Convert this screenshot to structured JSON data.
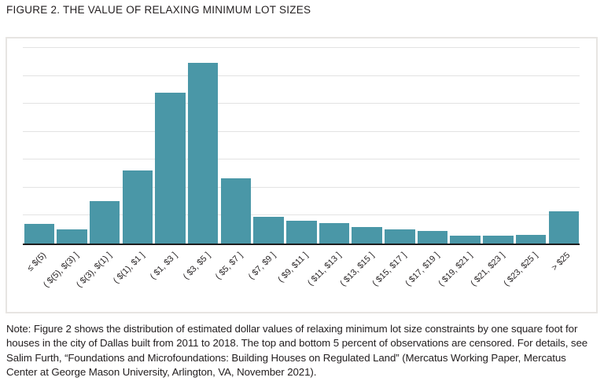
{
  "figure": {
    "title": "FIGURE 2. THE VALUE OF RELAXING MINIMUM LOT SIZES",
    "note": "Note: Figure 2 shows the distribution of estimated dollar values of relaxing minimum lot size constraints by one square foot for houses in the city of Dallas built from 2011 to 2018. The top and bottom 5 percent of observations are censored. For details, see Salim Furth, “Foundations and Microfoundations: Building Houses on Regulated Land” (Mercatus Working Paper, Mercatus Center at George Mason University, Arlington, VA, November 2021)."
  },
  "colors": {
    "bar": "#4a97a7",
    "axis": "#1c1c1c",
    "gridline": "#e3e3e3",
    "chart_border": "#e7e5e2",
    "text": "#231f20"
  },
  "chart_data": {
    "type": "bar",
    "title": "FIGURE 2. THE VALUE OF RELAXING MINIMUM LOT SIZES",
    "categories": [
      "≤ $(5)",
      "( $(5), $(3) ]",
      "( $(3), $(1) ]",
      "( $(1), $1 ]",
      "( $1, $3 ]",
      "( $3, $5 ]",
      "( $5, $7 ]",
      "( $7, $9 ]",
      "( $9, $11 ]",
      "( $11, $13 ]",
      "( $13, $15 ]",
      "( $15, $17 ]",
      "( $17, $19 ]",
      "( $19, $21 ]",
      "( $21, $23 ]",
      "( $23, $25 ]",
      "> $25"
    ],
    "values": [
      0.7,
      0.5,
      1.51,
      2.63,
      5.41,
      6.49,
      2.34,
      0.96,
      0.82,
      0.72,
      0.58,
      0.51,
      0.44,
      0.28,
      0.27,
      0.3,
      1.15
    ],
    "xlabel": "",
    "ylabel": "",
    "y_axis": {
      "labels_visible": false,
      "unit": "gridline-interval (unlabeled axis; values are heights in gridline units)",
      "gridline_count": 7,
      "ylim": [
        0,
        7.4
      ]
    },
    "legend": "none",
    "grid": "horizontal",
    "bar_color": "#4a97a7",
    "x_tick_rotation_deg": 45
  }
}
